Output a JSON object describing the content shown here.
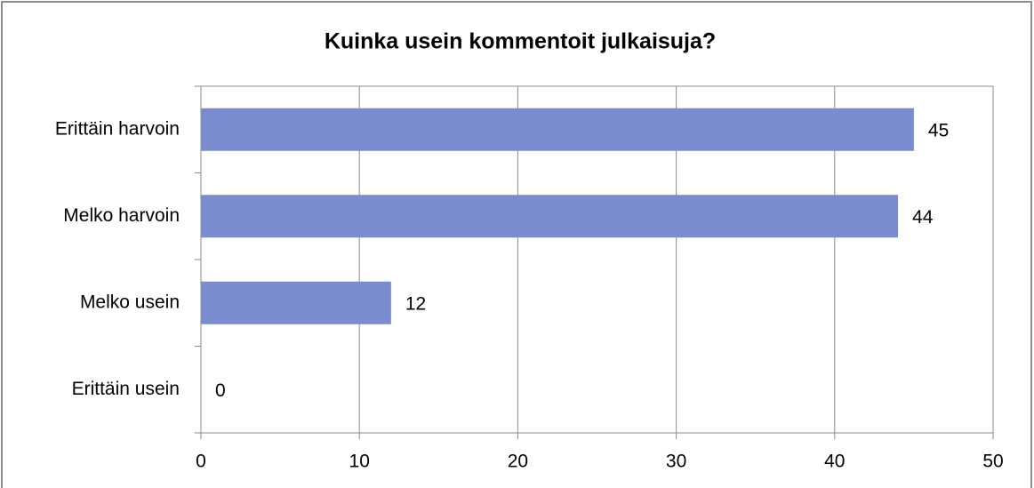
{
  "chart_data": {
    "type": "bar",
    "orientation": "horizontal",
    "title": "Kuinka usein kommentoit julkaisuja?",
    "categories": [
      "Erittäin harvoin",
      "Melko harvoin",
      "Melko usein",
      "Erittäin usein"
    ],
    "values": [
      45,
      44,
      12,
      0
    ],
    "color": "#7b8bcf",
    "xlim": [
      0,
      50
    ],
    "xticks": [
      0,
      10,
      20,
      30,
      40,
      50
    ],
    "grid": true
  }
}
